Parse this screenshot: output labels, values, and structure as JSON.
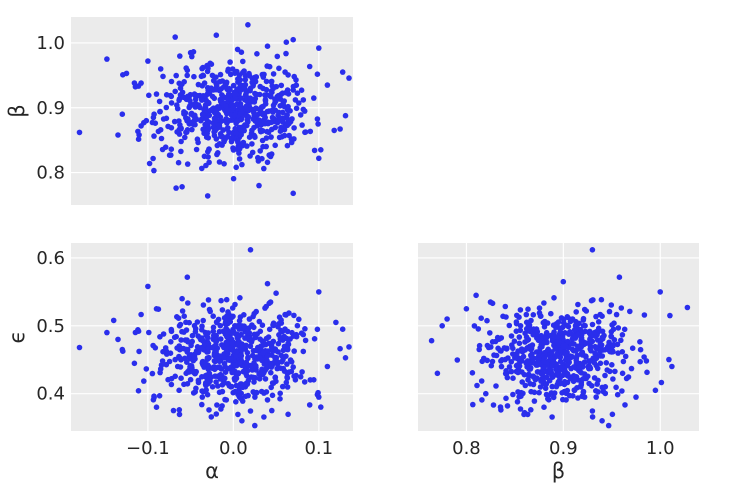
{
  "figure": {
    "background": "#ffffff",
    "panel_color": "#ebebeb",
    "marker_color": "#2a2eec"
  },
  "chart_data": [
    {
      "type": "scatter",
      "panel": "alpha-beta",
      "xlabel": "",
      "ylabel": "β",
      "xlim": [
        -0.19,
        0.14
      ],
      "ylim": [
        0.75,
        1.04
      ],
      "xticks": [],
      "yticks": [
        {
          "value": 0.8,
          "label": "0.8"
        },
        {
          "value": 0.9,
          "label": "0.9"
        },
        {
          "value": 1.0,
          "label": "1.0"
        }
      ],
      "vgrid": [
        -0.1,
        0.0,
        0.1
      ],
      "points": [
        {
          "x": -0.18,
          "y": 0.862
        },
        {
          "x": -0.148,
          "y": 0.975
        },
        {
          "x": -0.135,
          "y": 0.858
        },
        {
          "x": -0.13,
          "y": 0.89
        },
        {
          "x": -0.125,
          "y": 0.953
        },
        {
          "x": -0.108,
          "y": 0.872
        },
        {
          "x": -0.1,
          "y": 0.972
        },
        {
          "x": -0.098,
          "y": 0.814
        },
        {
          "x": -0.093,
          "y": 0.803
        },
        {
          "x": -0.09,
          "y": 0.921
        },
        {
          "x": -0.085,
          "y": 0.96
        },
        {
          "x": -0.067,
          "y": 0.776
        },
        {
          "x": -0.06,
          "y": 0.778
        },
        {
          "x": -0.03,
          "y": 0.764
        },
        {
          "x": 0.017,
          "y": 1.028
        },
        {
          "x": -0.02,
          "y": 1.012
        },
        {
          "x": 0.03,
          "y": 0.78
        },
        {
          "x": 0.07,
          "y": 0.768
        },
        {
          "x": 0.07,
          "y": 1.005
        },
        {
          "x": 0.1,
          "y": 0.992
        },
        {
          "x": 0.1,
          "y": 0.822
        },
        {
          "x": 0.118,
          "y": 0.865
        },
        {
          "x": 0.128,
          "y": 0.955
        },
        {
          "x": 0.11,
          "y": 0.935
        },
        {
          "x": 0.005,
          "y": 0.99
        },
        {
          "x": -0.05,
          "y": 0.985
        },
        {
          "x": 0.04,
          "y": 0.995
        }
      ]
    },
    {
      "type": "scatter",
      "panel": "alpha-epsilon",
      "xlabel": "α",
      "ylabel": "ϵ",
      "xlim": [
        -0.19,
        0.14
      ],
      "ylim": [
        0.345,
        0.622
      ],
      "xticks": [
        {
          "value": -0.1,
          "label": "−0.1"
        },
        {
          "value": 0.0,
          "label": "0.0"
        },
        {
          "value": 0.1,
          "label": "0.1"
        }
      ],
      "yticks": [
        {
          "value": 0.4,
          "label": "0.4"
        },
        {
          "value": 0.5,
          "label": "0.5"
        },
        {
          "value": 0.6,
          "label": "0.6"
        }
      ],
      "points": [
        {
          "x": -0.18,
          "y": 0.468
        },
        {
          "x": -0.148,
          "y": 0.49
        },
        {
          "x": -0.14,
          "y": 0.508
        },
        {
          "x": -0.135,
          "y": 0.48
        },
        {
          "x": -0.13,
          "y": 0.465
        },
        {
          "x": -0.1,
          "y": 0.558
        },
        {
          "x": -0.09,
          "y": 0.525
        },
        {
          "x": -0.06,
          "y": 0.54
        },
        {
          "x": 0.02,
          "y": 0.612
        },
        {
          "x": 0.04,
          "y": 0.562
        },
        {
          "x": 0.05,
          "y": 0.548
        },
        {
          "x": -0.09,
          "y": 0.38
        },
        {
          "x": -0.07,
          "y": 0.375
        },
        {
          "x": -0.02,
          "y": 0.37
        },
        {
          "x": 0.01,
          "y": 0.36
        },
        {
          "x": 0.045,
          "y": 0.375
        },
        {
          "x": 0.1,
          "y": 0.55
        },
        {
          "x": 0.12,
          "y": 0.505
        },
        {
          "x": 0.128,
          "y": 0.495
        },
        {
          "x": 0.11,
          "y": 0.44
        },
        {
          "x": 0.1,
          "y": 0.395
        }
      ]
    },
    {
      "type": "scatter",
      "panel": "beta-epsilon",
      "xlabel": "β",
      "ylabel": "",
      "xlim": [
        0.75,
        1.04
      ],
      "ylim": [
        0.345,
        0.622
      ],
      "xticks": [
        {
          "value": 0.8,
          "label": "0.8"
        },
        {
          "value": 0.9,
          "label": "0.9"
        },
        {
          "value": 1.0,
          "label": "1.0"
        }
      ],
      "yticks": [],
      "hgrid": [
        0.4,
        0.5,
        0.6
      ],
      "points": [
        {
          "x": 0.764,
          "y": 0.478
        },
        {
          "x": 0.77,
          "y": 0.43
        },
        {
          "x": 0.78,
          "y": 0.51
        },
        {
          "x": 0.775,
          "y": 0.5
        },
        {
          "x": 0.8,
          "y": 0.525
        },
        {
          "x": 0.81,
          "y": 0.545
        },
        {
          "x": 0.93,
          "y": 0.612
        },
        {
          "x": 0.9,
          "y": 0.565
        },
        {
          "x": 1.0,
          "y": 0.55
        },
        {
          "x": 1.028,
          "y": 0.527
        },
        {
          "x": 1.01,
          "y": 0.515
        },
        {
          "x": 1.012,
          "y": 0.44
        },
        {
          "x": 0.995,
          "y": 0.405
        },
        {
          "x": 0.975,
          "y": 0.395
        },
        {
          "x": 0.94,
          "y": 0.36
        },
        {
          "x": 0.86,
          "y": 0.372
        },
        {
          "x": 0.88,
          "y": 0.38
        },
        {
          "x": 0.82,
          "y": 0.4
        }
      ]
    }
  ]
}
